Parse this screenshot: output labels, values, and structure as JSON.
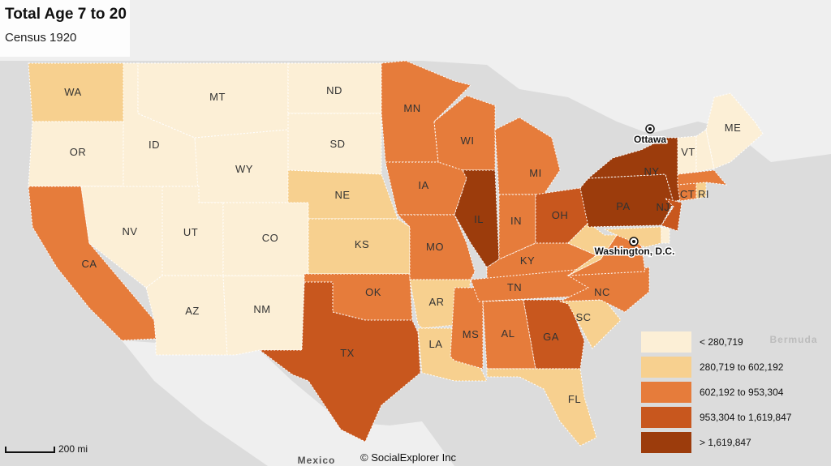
{
  "title": "Total Age 7 to 20",
  "subtitle": "Census 1920",
  "legend": [
    {
      "label": "< 280,719",
      "color": "#fcefd6"
    },
    {
      "label": "280,719 to 602,192",
      "color": "#f7d08f"
    },
    {
      "label": "602,192 to 953,304",
      "color": "#e67c3b"
    },
    {
      "label": "953,304 to 1,619,847",
      "color": "#c8571e"
    },
    {
      "label": "> 1,619,847",
      "color": "#9c3c0c"
    }
  ],
  "states": {
    "WA": 1,
    "OR": 0,
    "CA": 2,
    "NV": 0,
    "ID": 0,
    "MT": 0,
    "WY": 0,
    "UT": 0,
    "AZ": 0,
    "NM": 0,
    "CO": 0,
    "ND": 0,
    "SD": 0,
    "NE": 1,
    "KS": 1,
    "OK": 2,
    "TX": 3,
    "MN": 2,
    "IA": 2,
    "MO": 2,
    "AR": 1,
    "LA": 1,
    "WI": 2,
    "IL": 4,
    "MS": 2,
    "MI": 2,
    "IN": 2,
    "OH": 3,
    "KY": 2,
    "TN": 2,
    "AL": 2,
    "GA": 3,
    "FL": 1,
    "SC": 1,
    "NC": 2,
    "VA": 2,
    "WV": 1,
    "PA": 4,
    "NY": 4,
    "NJ": 3,
    "MD": 1,
    "DE": 0,
    "CT": 2,
    "RI": 1,
    "MA": 2,
    "VT": 0,
    "NH": 0,
    "ME": 0
  },
  "places": {
    "ottawa": "Ottawa",
    "washington": "Washington, D.C.",
    "bermuda": "Bermuda",
    "mexico": "Mexico"
  },
  "scale_label": "200 mi",
  "credit": "© SocialExplorer Inc"
}
